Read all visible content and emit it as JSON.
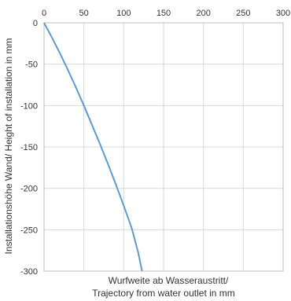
{
  "chart_data": {
    "type": "line",
    "xlabel_lines": [
      "Wurfweite ab Wasseraustritt/",
      "Trajectory from water outlet in mm"
    ],
    "ylabel": "Installationshöhe Wand/ Height of installation  in mm",
    "xlim": [
      0,
      300
    ],
    "ylim": [
      -300,
      0
    ],
    "x_ticks": [
      0,
      50,
      100,
      150,
      200,
      250,
      300
    ],
    "y_ticks": [
      0,
      -50,
      -100,
      -150,
      -200,
      -250,
      -300
    ],
    "x_tick_position": "top",
    "grid": true,
    "series": [
      {
        "color": "#5b9bd5",
        "points": [
          [
            0,
            0
          ],
          [
            10,
            -18
          ],
          [
            20,
            -37
          ],
          [
            30,
            -57
          ],
          [
            40,
            -78
          ],
          [
            50,
            -100
          ],
          [
            60,
            -123
          ],
          [
            70,
            -146
          ],
          [
            80,
            -170
          ],
          [
            90,
            -195
          ],
          [
            100,
            -221
          ],
          [
            110,
            -248
          ],
          [
            118,
            -277
          ],
          [
            123,
            -300
          ]
        ]
      }
    ]
  }
}
